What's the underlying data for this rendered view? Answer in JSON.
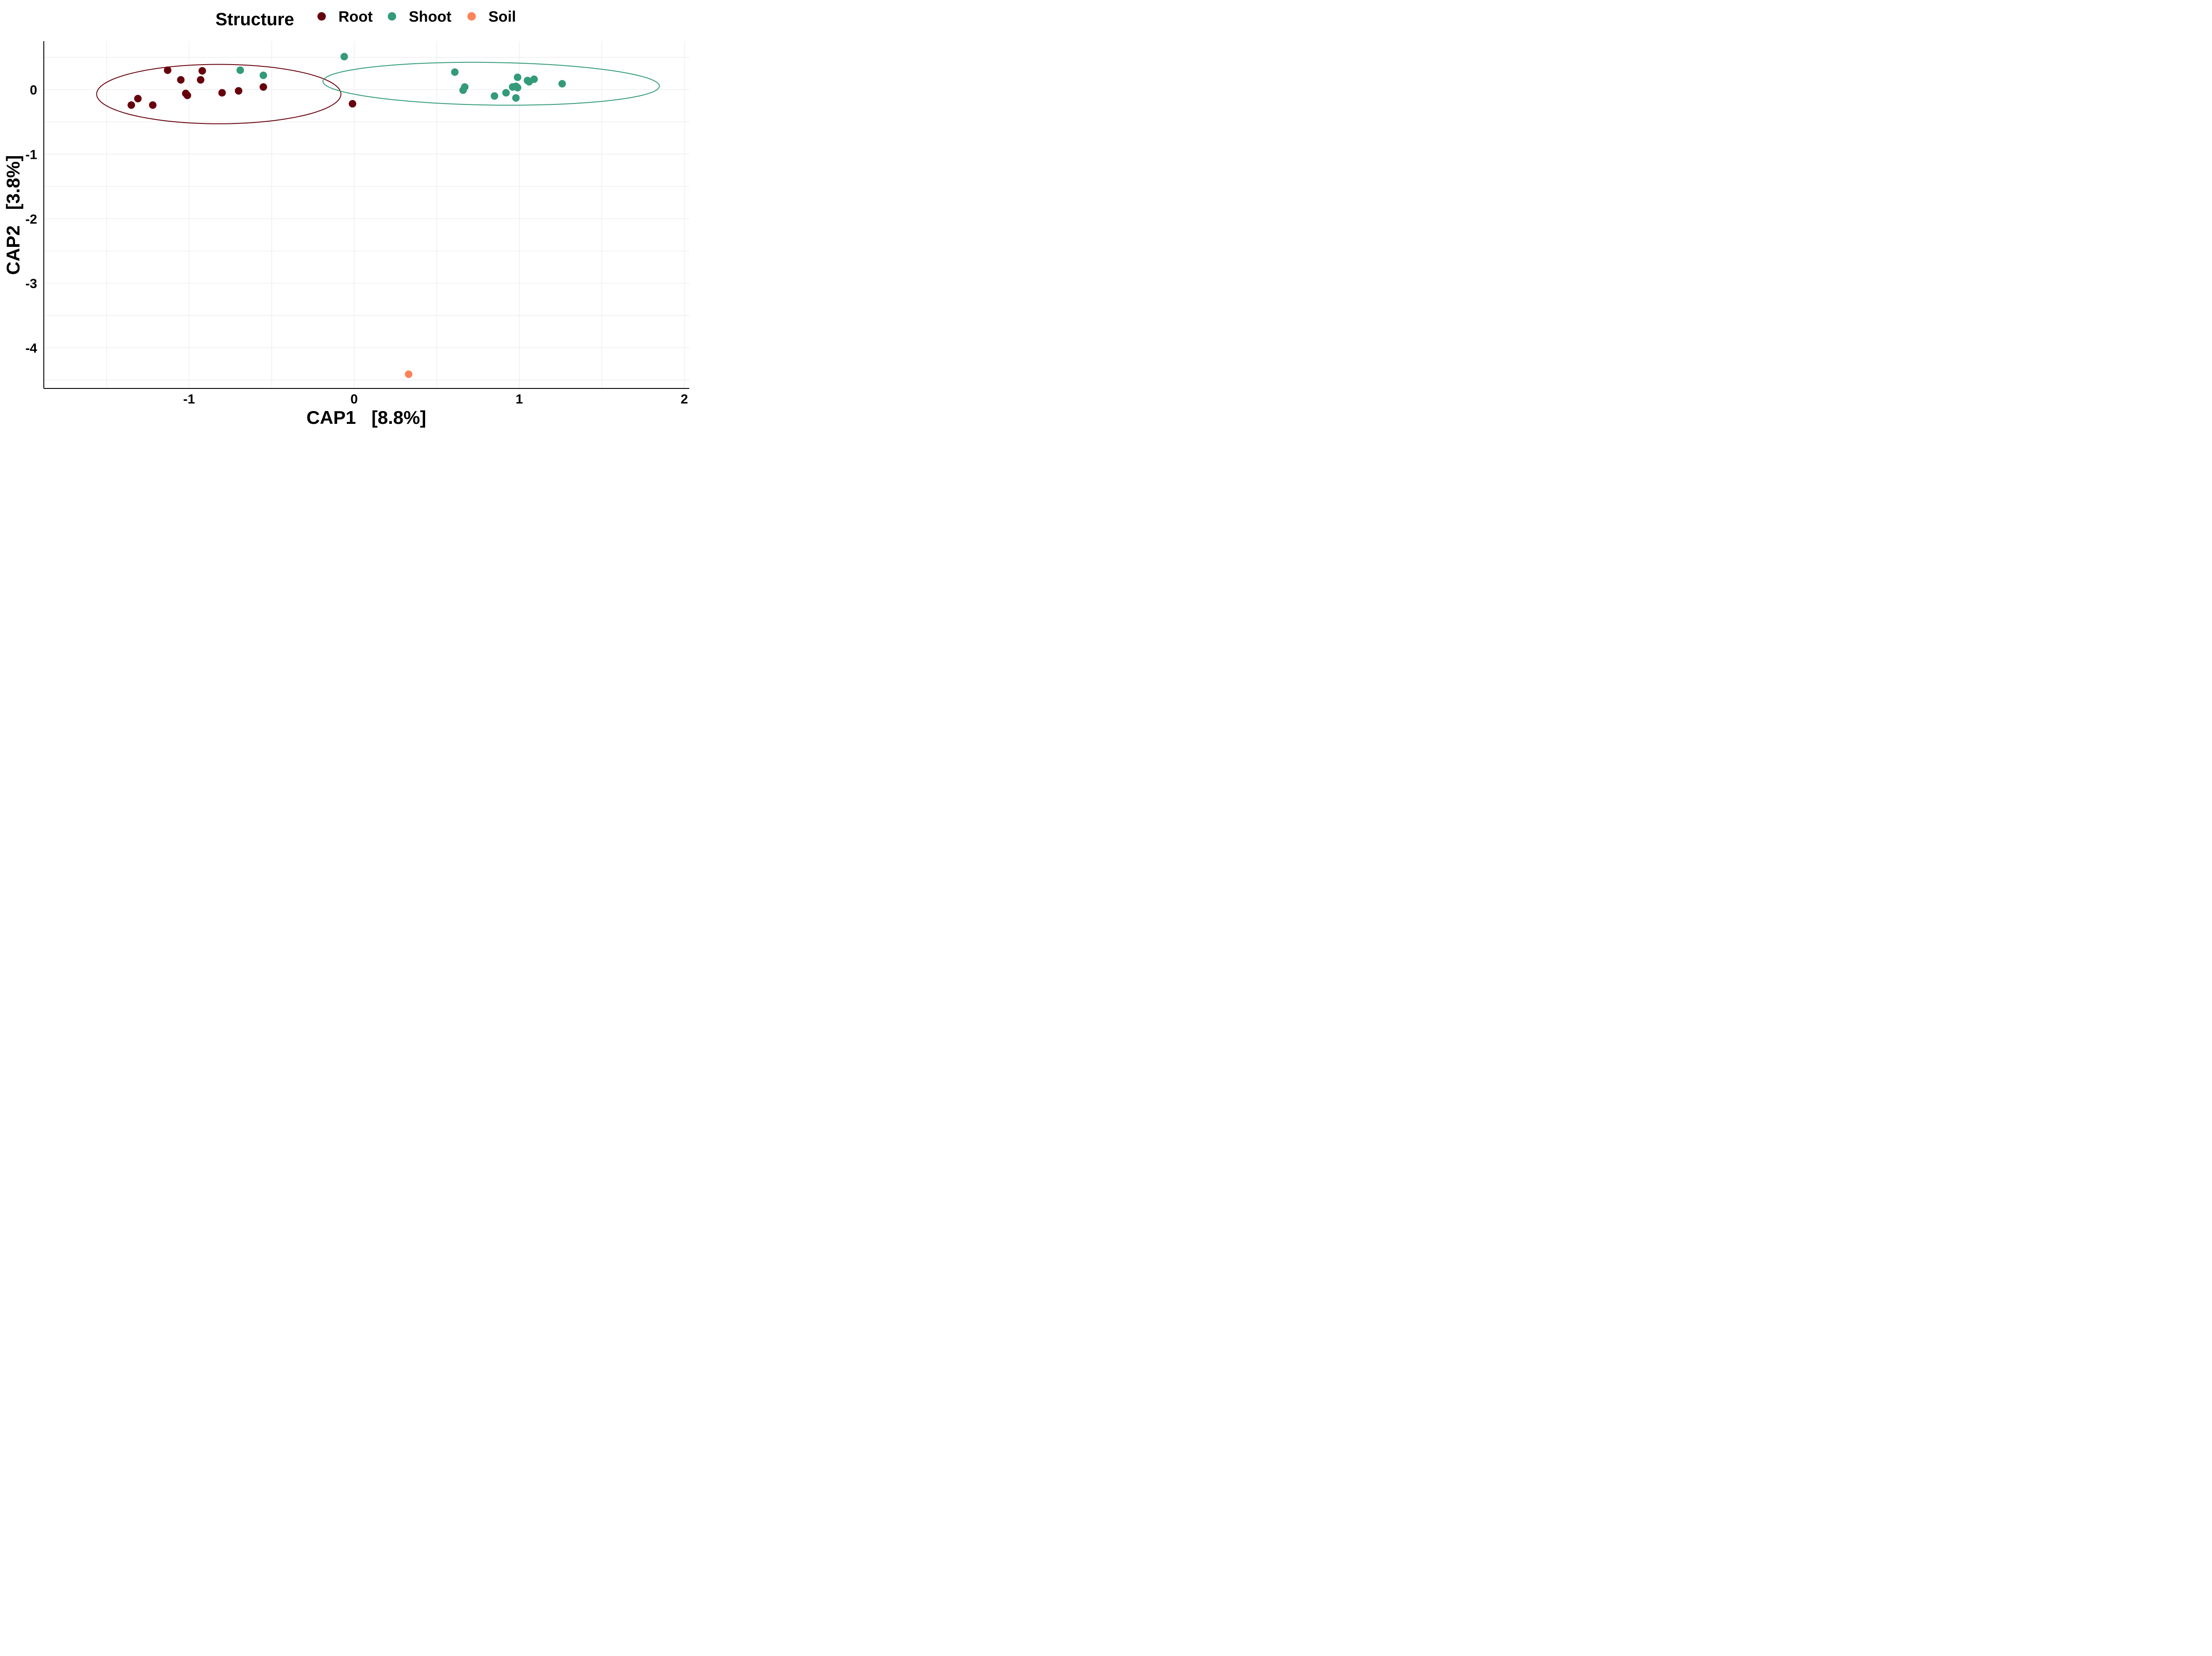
{
  "chart_data": {
    "type": "scatter",
    "title": "",
    "xlabel": "CAP1   [8.8%]",
    "ylabel": "CAP2   [3.8%]",
    "xlim": [
      -1.88,
      2.03
    ],
    "ylim": [
      -4.63,
      0.75
    ],
    "x_ticks": [
      -1,
      0,
      1,
      2
    ],
    "y_ticks": [
      0,
      -1,
      -2,
      -3,
      -4
    ],
    "grid": true,
    "legend": {
      "title": "Structure",
      "position": "top"
    },
    "series": [
      {
        "name": "Root",
        "color": "#67000d",
        "points": [
          [
            -1.13,
            0.3
          ],
          [
            -0.92,
            0.29
          ],
          [
            -1.05,
            0.15
          ],
          [
            -0.93,
            0.15
          ],
          [
            -0.55,
            0.04
          ],
          [
            -1.02,
            -0.06
          ],
          [
            -1.01,
            -0.09
          ],
          [
            -0.8,
            -0.05
          ],
          [
            -0.7,
            -0.02
          ],
          [
            -1.31,
            -0.14
          ],
          [
            -1.35,
            -0.24
          ],
          [
            -1.22,
            -0.24
          ],
          [
            -0.01,
            -0.22
          ]
        ],
        "ellipse": {
          "center": [
            -0.82,
            -0.07
          ],
          "semi_axes": [
            0.74,
            0.46
          ],
          "angle_deg": 0
        }
      },
      {
        "name": "Shoot",
        "color": "#339b77",
        "points": [
          [
            -0.06,
            0.51
          ],
          [
            -0.69,
            0.3
          ],
          [
            -0.55,
            0.22
          ],
          [
            0.61,
            0.27
          ],
          [
            0.67,
            0.04
          ],
          [
            0.66,
            -0.01
          ],
          [
            0.85,
            -0.1
          ],
          [
            0.92,
            -0.05
          ],
          [
            0.96,
            0.04
          ],
          [
            0.98,
            0.05
          ],
          [
            0.99,
            0.03
          ],
          [
            0.98,
            -0.13
          ],
          [
            0.99,
            0.19
          ],
          [
            1.05,
            0.14
          ],
          [
            1.06,
            0.12
          ],
          [
            1.09,
            0.16
          ],
          [
            1.26,
            0.09
          ]
        ],
        "ellipse": {
          "center": [
            0.83,
            0.09
          ],
          "semi_axes": [
            1.02,
            0.33
          ],
          "angle_deg": -2.3
        }
      },
      {
        "name": "Soil",
        "color": "#fc8357",
        "points": [
          [
            0.33,
            -4.41
          ]
        ]
      }
    ]
  }
}
